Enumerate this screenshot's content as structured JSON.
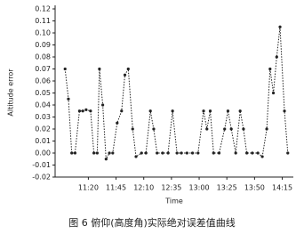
{
  "chart_data": {
    "type": "line",
    "caption": "图 6   俯仰(高度角)实际绝对误差值曲线",
    "x_label": "Time",
    "y_label": "Altitude error",
    "xlim": [
      650,
      865
    ],
    "xticks": [
      {
        "value": 680,
        "label": "11:20"
      },
      {
        "value": 705,
        "label": "11:45"
      },
      {
        "value": 730,
        "label": "12:10"
      },
      {
        "value": 755,
        "label": "12:35"
      },
      {
        "value": 780,
        "label": "13:00"
      },
      {
        "value": 805,
        "label": "13:25"
      },
      {
        "value": 830,
        "label": "13:50"
      },
      {
        "value": 855,
        "label": "14:15"
      }
    ],
    "ylim": [
      -0.02,
      0.12
    ],
    "yticks": [
      -0.02,
      -0.01,
      {
        "value": 0,
        "label": "0.00"
      },
      0.01,
      0.02,
      0.03,
      0.04,
      0.05,
      0.06,
      0.07,
      0.08,
      0.09,
      {
        "value": 0.1,
        "label": "0.10"
      },
      0.11,
      0.12
    ],
    "series": [
      {
        "color": "#222222",
        "x": [
          659,
          662,
          665,
          668,
          672,
          675,
          678,
          682,
          685,
          688,
          690,
          693,
          696,
          699,
          702,
          706,
          710,
          713,
          716,
          720,
          723,
          728,
          732,
          736,
          739,
          742,
          747,
          752,
          756,
          760,
          764,
          769,
          774,
          779,
          784,
          787,
          790,
          793,
          798,
          803,
          806,
          809,
          813,
          817,
          820,
          823,
          828,
          833,
          837,
          841,
          844,
          847,
          850,
          853,
          857,
          860
        ],
        "values": [
          0.07,
          0.045,
          0.0,
          0.0,
          0.035,
          0.035,
          0.036,
          0.035,
          0.0,
          0.0,
          0.07,
          0.04,
          -0.005,
          0.0,
          0.0,
          0.025,
          0.035,
          0.065,
          0.07,
          0.02,
          -0.003,
          0.0,
          0.0,
          0.035,
          0.02,
          0.0,
          0.0,
          0.0,
          0.035,
          0.0,
          0.0,
          0.0,
          0.0,
          0.0,
          0.035,
          0.02,
          0.035,
          0.0,
          0.0,
          0.02,
          0.035,
          0.02,
          0.0,
          0.035,
          0.02,
          0.0,
          0.0,
          0.0,
          -0.003,
          0.02,
          0.07,
          0.05,
          0.08,
          0.105,
          0.035,
          0.0
        ]
      }
    ]
  }
}
